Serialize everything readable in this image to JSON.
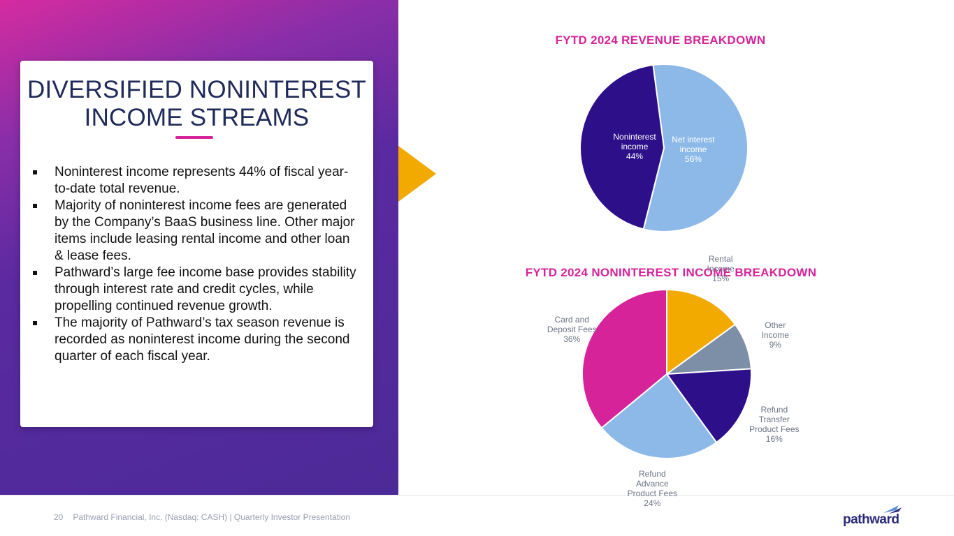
{
  "card": {
    "title_line1": "DIVERSIFIED NONINTEREST",
    "title_line2": "INCOME STREAMS",
    "bullets": [
      "Noninterest income represents 44% of fiscal year-to-date total revenue.",
      "Majority of noninterest income fees are generated by the Company’s BaaS business line. Other major items include leasing rental income and other loan & lease fees.",
      "Pathward’s large fee income base provides stability through interest rate and credit cycles, while propelling continued revenue growth.",
      "The majority of Pathward’s tax season revenue is recorded as noninterest income during the second quarter of each fiscal year."
    ]
  },
  "colors": {
    "accent": "#d6239a",
    "navy": "#1f2a5a",
    "purple": "#4c2a98",
    "gold": "#f2a900"
  },
  "footer": {
    "page_number": "20",
    "text": "Pathward Financial, Inc. (Nasdaq: CASH) | Quarterly Investor Presentation",
    "logo_text": "pathward"
  },
  "chart_data": [
    {
      "type": "pie",
      "title": "FYTD 2024 REVENUE BREAKDOWN",
      "slices": [
        {
          "label_lines": [
            "Net interest",
            "income"
          ],
          "value": 56,
          "pct_text": "56%",
          "color": "#8db9e8"
        },
        {
          "label_lines": [
            "Noninterest",
            "income"
          ],
          "value": 44,
          "pct_text": "44%",
          "color": "#2d0f8a"
        }
      ]
    },
    {
      "type": "pie",
      "title": "FYTD 2024 NONINTEREST INCOME BREAKDOWN",
      "slices": [
        {
          "label_lines": [
            "Rental",
            "Income"
          ],
          "value": 15,
          "pct_text": "15%",
          "color": "#f2a900"
        },
        {
          "label_lines": [
            "Other",
            "Income"
          ],
          "value": 9,
          "pct_text": "9%",
          "color": "#7d8fa6"
        },
        {
          "label_lines": [
            "Refund",
            "Transfer",
            "Product Fees"
          ],
          "value": 16,
          "pct_text": "16%",
          "color": "#2d0f8a"
        },
        {
          "label_lines": [
            "Refund",
            "Advance",
            "Product Fees"
          ],
          "value": 24,
          "pct_text": "24%",
          "color": "#8db9e8"
        },
        {
          "label_lines": [
            "Card and",
            "Deposit Fees"
          ],
          "value": 36,
          "pct_text": "36%",
          "color": "#d6239a"
        }
      ]
    }
  ]
}
